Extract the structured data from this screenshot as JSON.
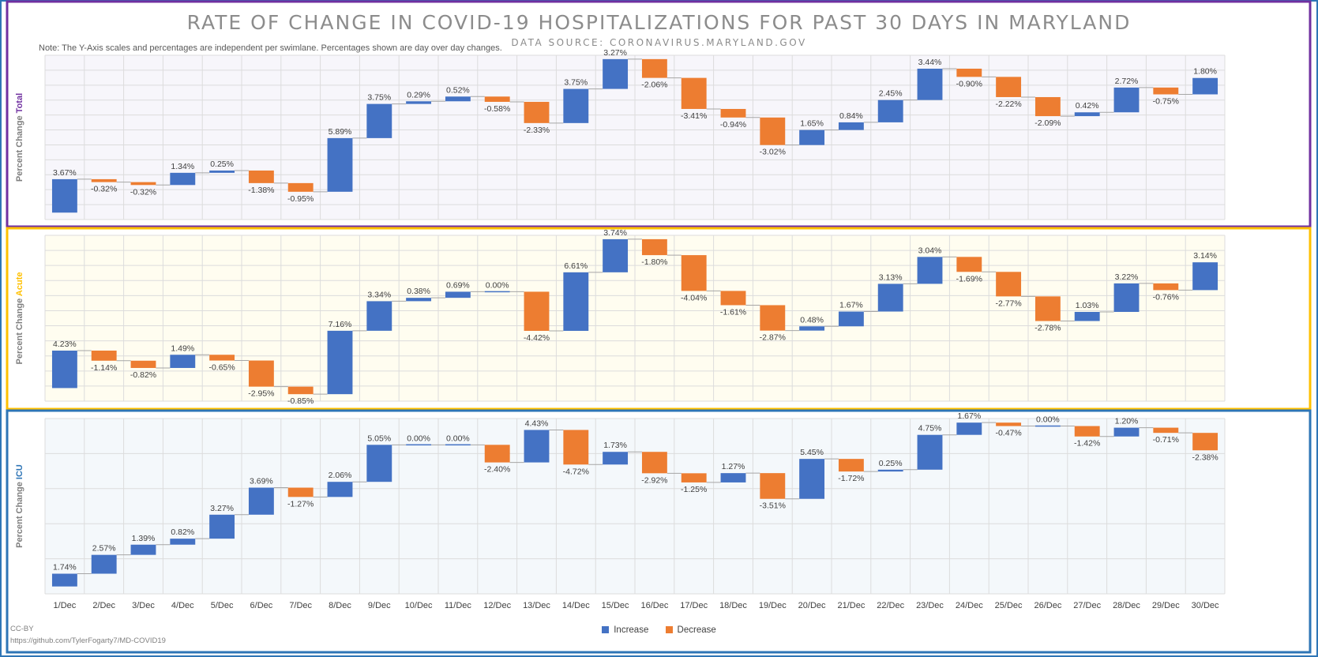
{
  "title": "RATE OF CHANGE IN COVID-19 HOSPITALIZATIONS FOR PAST 30 DAYS IN MARYLAND",
  "subtitle": "DATA SOURCE: CORONAVIRUS.MARYLAND.GOV",
  "note": "Note: The Y-Axis scales and percentages are independent per swimlane. Percentages shown are day over day changes.",
  "credit": {
    "license": "CC-BY",
    "url": "https://github.com/TylerFogarty7/MD-COVID19"
  },
  "legend": [
    {
      "label": "Increase",
      "color": "#4472c4"
    },
    {
      "label": "Decrease",
      "color": "#ed7d31"
    }
  ],
  "colors": {
    "increase": "#4472c4",
    "decrease": "#ed7d31"
  },
  "chart_data": [
    {
      "type": "bar",
      "style": "waterfall",
      "ylabel_prefix": "Percent Change ",
      "ylabel_highlight": "Total",
      "panel_color": "#7030a0",
      "background": "#f7f6fb",
      "categories": [
        "1/Dec",
        "2/Dec",
        "3/Dec",
        "4/Dec",
        "5/Dec",
        "6/Dec",
        "7/Dec",
        "8/Dec",
        "9/Dec",
        "10/Dec",
        "11/Dec",
        "12/Dec",
        "13/Dec",
        "14/Dec",
        "15/Dec",
        "16/Dec",
        "17/Dec",
        "18/Dec",
        "19/Dec",
        "20/Dec",
        "21/Dec",
        "22/Dec",
        "23/Dec",
        "24/Dec",
        "25/Dec",
        "26/Dec",
        "27/Dec",
        "28/Dec",
        "29/Dec",
        "30/Dec"
      ],
      "values": [
        3.67,
        -0.32,
        -0.32,
        1.34,
        0.25,
        -1.38,
        -0.95,
        5.89,
        3.75,
        0.29,
        0.52,
        -0.58,
        -2.33,
        3.75,
        3.27,
        -2.06,
        -3.41,
        -0.94,
        -3.02,
        1.65,
        0.84,
        2.45,
        3.44,
        -0.9,
        -2.22,
        -2.09,
        0.42,
        2.72,
        -0.75,
        1.8
      ],
      "labels": [
        "3.67%",
        "-0.32%",
        "-0.32%",
        "1.34%",
        "0.25%",
        "-1.38%",
        "-0.95%",
        "5.89%",
        "3.75%",
        "0.29%",
        "0.52%",
        "-0.58%",
        "-2.33%",
        "3.75%",
        "3.27%",
        "-2.06%",
        "-3.41%",
        "-0.94%",
        "-3.02%",
        "1.65%",
        "0.84%",
        "2.45%",
        "3.44%",
        "-0.90%",
        "-2.22%",
        "-2.09%",
        "0.42%",
        "2.72%",
        "-0.75%",
        "1.80%"
      ]
    },
    {
      "type": "bar",
      "style": "waterfall",
      "ylabel_prefix": "Percent Change ",
      "ylabel_highlight": "Acute",
      "panel_color": "#ffc000",
      "background": "#fffdf0",
      "categories": [
        "1/Dec",
        "2/Dec",
        "3/Dec",
        "4/Dec",
        "5/Dec",
        "6/Dec",
        "7/Dec",
        "8/Dec",
        "9/Dec",
        "10/Dec",
        "11/Dec",
        "12/Dec",
        "13/Dec",
        "14/Dec",
        "15/Dec",
        "16/Dec",
        "17/Dec",
        "18/Dec",
        "19/Dec",
        "20/Dec",
        "21/Dec",
        "22/Dec",
        "23/Dec",
        "24/Dec",
        "25/Dec",
        "26/Dec",
        "27/Dec",
        "28/Dec",
        "29/Dec",
        "30/Dec"
      ],
      "values": [
        4.23,
        -1.14,
        -0.82,
        1.49,
        -0.65,
        -2.95,
        -0.85,
        7.16,
        3.34,
        0.38,
        0.69,
        0.0,
        -4.42,
        6.61,
        3.74,
        -1.8,
        -4.04,
        -1.61,
        -2.87,
        0.48,
        1.67,
        3.13,
        3.04,
        -1.69,
        -2.77,
        -2.78,
        1.03,
        3.22,
        -0.76,
        3.14
      ],
      "labels": [
        "4.23%",
        "-1.14%",
        "-0.82%",
        "1.49%",
        "-0.65%",
        "-2.95%",
        "-0.85%",
        "7.16%",
        "3.34%",
        "0.38%",
        "0.69%",
        "0.00%",
        "-4.42%",
        "6.61%",
        "3.74%",
        "-1.80%",
        "-4.04%",
        "-1.61%",
        "-2.87%",
        "0.48%",
        "1.67%",
        "3.13%",
        "3.04%",
        "-1.69%",
        "-2.77%",
        "-2.78%",
        "1.03%",
        "3.22%",
        "-0.76%",
        "3.14%"
      ]
    },
    {
      "type": "bar",
      "style": "waterfall",
      "ylabel_prefix": "Percent Change ",
      "ylabel_highlight": "ICU",
      "panel_color": "#2e75b6",
      "background": "#f4f8fb",
      "categories": [
        "1/Dec",
        "2/Dec",
        "3/Dec",
        "4/Dec",
        "5/Dec",
        "6/Dec",
        "7/Dec",
        "8/Dec",
        "9/Dec",
        "10/Dec",
        "11/Dec",
        "12/Dec",
        "13/Dec",
        "14/Dec",
        "15/Dec",
        "16/Dec",
        "17/Dec",
        "18/Dec",
        "19/Dec",
        "20/Dec",
        "21/Dec",
        "22/Dec",
        "23/Dec",
        "24/Dec",
        "25/Dec",
        "26/Dec",
        "27/Dec",
        "28/Dec",
        "29/Dec",
        "30/Dec"
      ],
      "values": [
        1.74,
        2.57,
        1.39,
        0.82,
        3.27,
        3.69,
        -1.27,
        2.06,
        5.05,
        0.0,
        0.0,
        -2.4,
        4.43,
        -4.72,
        1.73,
        -2.92,
        -1.25,
        1.27,
        -3.51,
        5.45,
        -1.72,
        0.25,
        4.75,
        1.67,
        -0.47,
        0.0,
        -1.42,
        1.2,
        -0.71,
        -2.38
      ],
      "labels": [
        "1.74%",
        "2.57%",
        "1.39%",
        "0.82%",
        "3.27%",
        "3.69%",
        "-1.27%",
        "2.06%",
        "5.05%",
        "0.00%",
        "0.00%",
        "-2.40%",
        "4.43%",
        "-4.72%",
        "1.73%",
        "-2.92%",
        "-1.25%",
        "1.27%",
        "-3.51%",
        "5.45%",
        "-1.72%",
        "0.25%",
        "4.75%",
        "1.67%",
        "-0.47%",
        "0.00%",
        "-1.42%",
        "1.20%",
        "-0.71%",
        "-2.38%"
      ]
    }
  ]
}
